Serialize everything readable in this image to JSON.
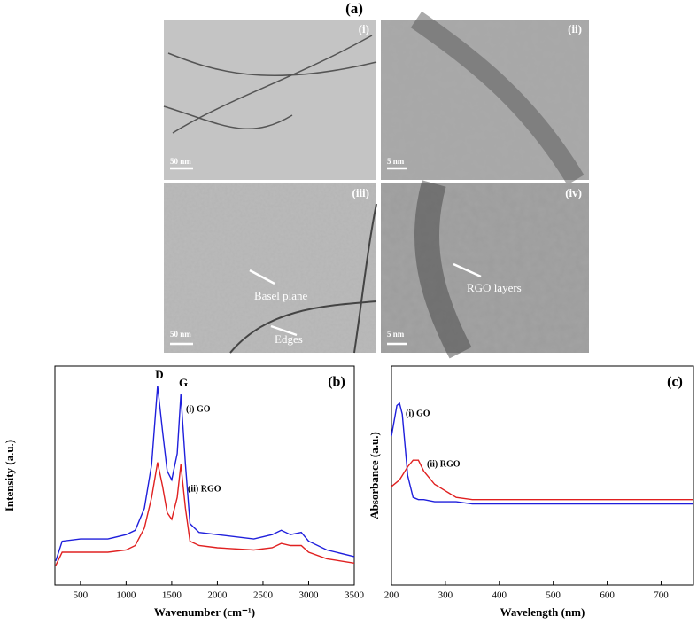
{
  "panel_a": {
    "title": "(a)",
    "images": [
      {
        "label": "(i)",
        "scale": "50 nm"
      },
      {
        "label": "(ii)",
        "scale": "5 nm"
      },
      {
        "label": "(iii)",
        "scale": "50 nm"
      },
      {
        "label": "(iv)",
        "scale": "5 nm"
      }
    ],
    "annotations": [
      "Basel plane",
      "Edges",
      "RGO layers"
    ]
  },
  "chart_data": [
    {
      "type": "line",
      "panel": "(b)",
      "xlabel": "Wavenumber (cm⁻¹)",
      "ylabel": "Intensity (a.u.)",
      "x": [
        230,
        300,
        500,
        800,
        1000,
        1100,
        1200,
        1280,
        1345,
        1400,
        1450,
        1500,
        1560,
        1600,
        1650,
        1700,
        1800,
        2000,
        2400,
        2600,
        2700,
        2800,
        2920,
        3000,
        3200,
        3500
      ],
      "series": [
        {
          "name": "(i) GO",
          "color": "#1f1fdc",
          "values": [
            11,
            20,
            21,
            21,
            23,
            25,
            35,
            55,
            91,
            70,
            52,
            48,
            60,
            87,
            55,
            28,
            24,
            23,
            21,
            23,
            25,
            23,
            24,
            20,
            16,
            13
          ]
        },
        {
          "name": "(ii) RGO",
          "color": "#e02020",
          "values": [
            9,
            15,
            15,
            15,
            16,
            18,
            26,
            40,
            56,
            45,
            33,
            30,
            40,
            55,
            35,
            20,
            18,
            17,
            16,
            17,
            19,
            18,
            18,
            15,
            12,
            10
          ]
        }
      ],
      "annotations": [
        "D",
        "G"
      ],
      "xlim": [
        220,
        3500
      ],
      "xticks": [
        500,
        1000,
        1500,
        2000,
        2500,
        3000,
        3500
      ],
      "ylim": [
        0,
        100
      ]
    },
    {
      "type": "line",
      "panel": "(c)",
      "xlabel": "Wavelength (nm)",
      "ylabel": "Absorbance (a.u.)",
      "x": [
        200,
        210,
        215,
        220,
        230,
        240,
        250,
        260,
        280,
        300,
        320,
        350,
        400,
        500,
        600,
        700,
        760
      ],
      "series": [
        {
          "name": "(i) GO",
          "color": "#1f1fdc",
          "values": [
            68,
            82,
            83,
            78,
            50,
            40,
            39,
            39,
            38,
            38,
            38,
            37,
            37,
            37,
            37,
            37,
            37
          ]
        },
        {
          "name": "(ii) RGO",
          "color": "#e02020",
          "values": [
            45,
            47,
            48,
            50,
            54,
            57,
            57,
            52,
            46,
            43,
            40,
            39,
            39,
            39,
            39,
            39,
            39
          ]
        }
      ],
      "annotations": [],
      "xlim": [
        200,
        760
      ],
      "xticks": [
        200,
        300,
        400,
        500,
        600,
        700
      ],
      "ylim": [
        0,
        100
      ]
    }
  ]
}
